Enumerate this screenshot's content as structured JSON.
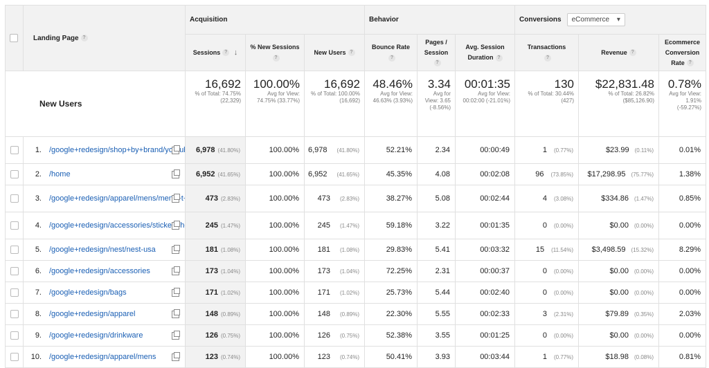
{
  "table": {
    "groups": {
      "acquisition": "Acquisition",
      "behavior": "Behavior",
      "conversions": "Conversions"
    },
    "conversion_select": "eCommerce",
    "columns": {
      "landing_page": "Landing Page",
      "sessions": "Sessions",
      "pct_new": "% New Sessions",
      "new_users": "New Users",
      "bounce": "Bounce Rate",
      "pages": "Pages / Session",
      "duration": "Avg. Session Duration",
      "transactions": "Transactions",
      "revenue": "Revenue",
      "ecr": "Ecommerce Conversion Rate"
    },
    "summary": {
      "label": "New Users",
      "sessions": "16,692",
      "sessions_sub": "% of Total: 74.75% (22,329)",
      "pct_new": "100.00%",
      "pct_new_sub": "Avg for View: 74.75% (33.77%)",
      "new_users": "16,692",
      "new_users_sub": "% of Total: 100.00% (16,692)",
      "bounce": "48.46%",
      "bounce_sub": "Avg for View: 46.63% (3.93%)",
      "pages": "3.34",
      "pages_sub": "Avg for View: 3.65 (-8.56%)",
      "duration": "00:01:35",
      "duration_sub": "Avg for View: 00:02:00 (-21.01%)",
      "transactions": "130",
      "transactions_sub": "% of Total: 30.44% (427)",
      "revenue": "$22,831.48",
      "revenue_sub": "% of Total: 26.82% ($85,126.90)",
      "ecr": "0.78%",
      "ecr_sub": "Avg for View: 1.91% (-59.27%)"
    },
    "rows": [
      {
        "n": "1.",
        "page": "/google+redesign/shop+by+brand/youtube",
        "sessions": "6,978",
        "sessions_pct": "(41.80%)",
        "pct_new": "100.00%",
        "new_users": "6,978",
        "new_users_pct": "(41.80%)",
        "bounce": "52.21%",
        "pages": "2.34",
        "duration": "00:00:49",
        "transactions": "1",
        "transactions_pct": "(0.77%)",
        "revenue": "$23.99",
        "revenue_pct": "(0.11%)",
        "ecr": "0.01%"
      },
      {
        "n": "2.",
        "page": "/home",
        "sessions": "6,952",
        "sessions_pct": "(41.65%)",
        "pct_new": "100.00%",
        "new_users": "6,952",
        "new_users_pct": "(41.65%)",
        "bounce": "45.35%",
        "pages": "4.08",
        "duration": "00:02:08",
        "transactions": "96",
        "transactions_pct": "(73.85%)",
        "revenue": "$17,298.95",
        "revenue_pct": "(75.77%)",
        "ecr": "1.38%"
      },
      {
        "n": "3.",
        "page": "/google+redesign/apparel/mens/mens+t+shirts",
        "sessions": "473",
        "sessions_pct": "(2.83%)",
        "pct_new": "100.00%",
        "new_users": "473",
        "new_users_pct": "(2.83%)",
        "bounce": "38.27%",
        "pages": "5.08",
        "duration": "00:02:44",
        "transactions": "4",
        "transactions_pct": "(3.08%)",
        "revenue": "$334.86",
        "revenue_pct": "(1.47%)",
        "ecr": "0.85%"
      },
      {
        "n": "4.",
        "page": "/google+redesign/accessories/stickers/home",
        "sessions": "245",
        "sessions_pct": "(1.47%)",
        "pct_new": "100.00%",
        "new_users": "245",
        "new_users_pct": "(1.47%)",
        "bounce": "59.18%",
        "pages": "3.22",
        "duration": "00:01:35",
        "transactions": "0",
        "transactions_pct": "(0.00%)",
        "revenue": "$0.00",
        "revenue_pct": "(0.00%)",
        "ecr": "0.00%"
      },
      {
        "n": "5.",
        "page": "/google+redesign/nest/nest-usa",
        "sessions": "181",
        "sessions_pct": "(1.08%)",
        "pct_new": "100.00%",
        "new_users": "181",
        "new_users_pct": "(1.08%)",
        "bounce": "29.83%",
        "pages": "5.41",
        "duration": "00:03:32",
        "transactions": "15",
        "transactions_pct": "(11.54%)",
        "revenue": "$3,498.59",
        "revenue_pct": "(15.32%)",
        "ecr": "8.29%"
      },
      {
        "n": "6.",
        "page": "/google+redesign/accessories",
        "sessions": "173",
        "sessions_pct": "(1.04%)",
        "pct_new": "100.00%",
        "new_users": "173",
        "new_users_pct": "(1.04%)",
        "bounce": "72.25%",
        "pages": "2.31",
        "duration": "00:00:37",
        "transactions": "0",
        "transactions_pct": "(0.00%)",
        "revenue": "$0.00",
        "revenue_pct": "(0.00%)",
        "ecr": "0.00%"
      },
      {
        "n": "7.",
        "page": "/google+redesign/bags",
        "sessions": "171",
        "sessions_pct": "(1.02%)",
        "pct_new": "100.00%",
        "new_users": "171",
        "new_users_pct": "(1.02%)",
        "bounce": "25.73%",
        "pages": "5.44",
        "duration": "00:02:40",
        "transactions": "0",
        "transactions_pct": "(0.00%)",
        "revenue": "$0.00",
        "revenue_pct": "(0.00%)",
        "ecr": "0.00%"
      },
      {
        "n": "8.",
        "page": "/google+redesign/apparel",
        "sessions": "148",
        "sessions_pct": "(0.89%)",
        "pct_new": "100.00%",
        "new_users": "148",
        "new_users_pct": "(0.89%)",
        "bounce": "22.30%",
        "pages": "5.55",
        "duration": "00:02:33",
        "transactions": "3",
        "transactions_pct": "(2.31%)",
        "revenue": "$79.89",
        "revenue_pct": "(0.35%)",
        "ecr": "2.03%"
      },
      {
        "n": "9.",
        "page": "/google+redesign/drinkware",
        "sessions": "126",
        "sessions_pct": "(0.75%)",
        "pct_new": "100.00%",
        "new_users": "126",
        "new_users_pct": "(0.75%)",
        "bounce": "52.38%",
        "pages": "3.55",
        "duration": "00:01:25",
        "transactions": "0",
        "transactions_pct": "(0.00%)",
        "revenue": "$0.00",
        "revenue_pct": "(0.00%)",
        "ecr": "0.00%"
      },
      {
        "n": "10.",
        "page": "/google+redesign/apparel/mens",
        "sessions": "123",
        "sessions_pct": "(0.74%)",
        "pct_new": "100.00%",
        "new_users": "123",
        "new_users_pct": "(0.74%)",
        "bounce": "50.41%",
        "pages": "3.93",
        "duration": "00:03:44",
        "transactions": "1",
        "transactions_pct": "(0.77%)",
        "revenue": "$18.98",
        "revenue_pct": "(0.08%)",
        "ecr": "0.81%"
      }
    ]
  }
}
